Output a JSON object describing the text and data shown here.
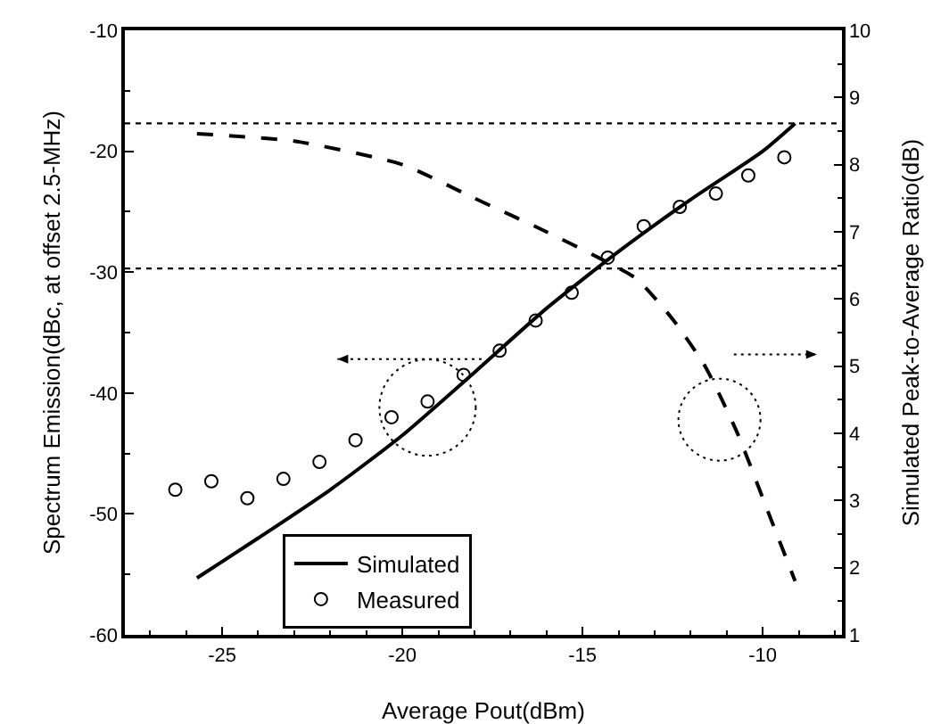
{
  "chart_data": {
    "type": "line",
    "xlabel": "Average Pout(dBm)",
    "ylabel": "Spectrum Emission(dBc, at offset 2.5-MHz)",
    "y2label": "Simulated Peak-to-Average Ratio(dB)",
    "xlim": [
      -27.7,
      -7.8
    ],
    "xticks": [
      -25,
      -20,
      -15,
      -10
    ],
    "ylim": [
      -60,
      -10
    ],
    "yticks": [
      -60,
      -50,
      -40,
      -30,
      -20,
      -10
    ],
    "y2lim": [
      1,
      10
    ],
    "y2ticks": [
      1,
      2,
      3,
      4,
      5,
      6,
      7,
      8,
      9,
      10
    ],
    "grid": false,
    "legend": "bottom",
    "series": [
      {
        "name": "Simulated",
        "color": "#000000",
        "line_style": "solid",
        "marker": "none",
        "x": [
          -25.7,
          -24,
          -22,
          -20,
          -18,
          -16,
          -14,
          -12,
          -10,
          -9.1
        ],
        "values": [
          -55.3,
          -52,
          -48,
          -43.5,
          -38.3,
          -33,
          -28.3,
          -24,
          -20,
          -17.7
        ]
      },
      {
        "name": "Measured",
        "type": "scatter",
        "color": "#000000",
        "marker": "circle",
        "x": [
          -26.3,
          -25.3,
          -24.3,
          -23.3,
          -22.3,
          -21.3,
          -20.3,
          -19.3,
          -18.3,
          -17.3,
          -16.3,
          -15.3,
          -14.3,
          -13.3,
          -12.3,
          -11.3,
          -10.4,
          -9.4
        ],
        "values": [
          -48,
          -47.3,
          -48.7,
          -47.1,
          -45.7,
          -43.9,
          -42,
          -40.7,
          -38.5,
          -36.5,
          -34,
          -31.7,
          -28.8,
          -26.2,
          -24.6,
          -23.5,
          -22,
          -20.5
        ]
      },
      {
        "axis": "y2",
        "color": "#000000",
        "line_style": "dashed",
        "marker": "none",
        "x": [
          -25.7,
          -23,
          -20,
          -18,
          -16,
          -14.5,
          -13.5,
          -12.5,
          -11.6,
          -10.7,
          -9.9,
          -9.1
        ],
        "values": [
          8.46,
          8.35,
          8,
          7.5,
          7,
          6.6,
          6.3,
          5.7,
          5,
          4,
          2.9,
          1.8
        ]
      }
    ],
    "ref_lines": [
      {
        "axis": "y",
        "value": -17.7,
        "line_style": "dotted",
        "color": "#000000"
      },
      {
        "axis": "y",
        "value": -29.7,
        "line_style": "dotted",
        "color": "#000000"
      }
    ]
  }
}
